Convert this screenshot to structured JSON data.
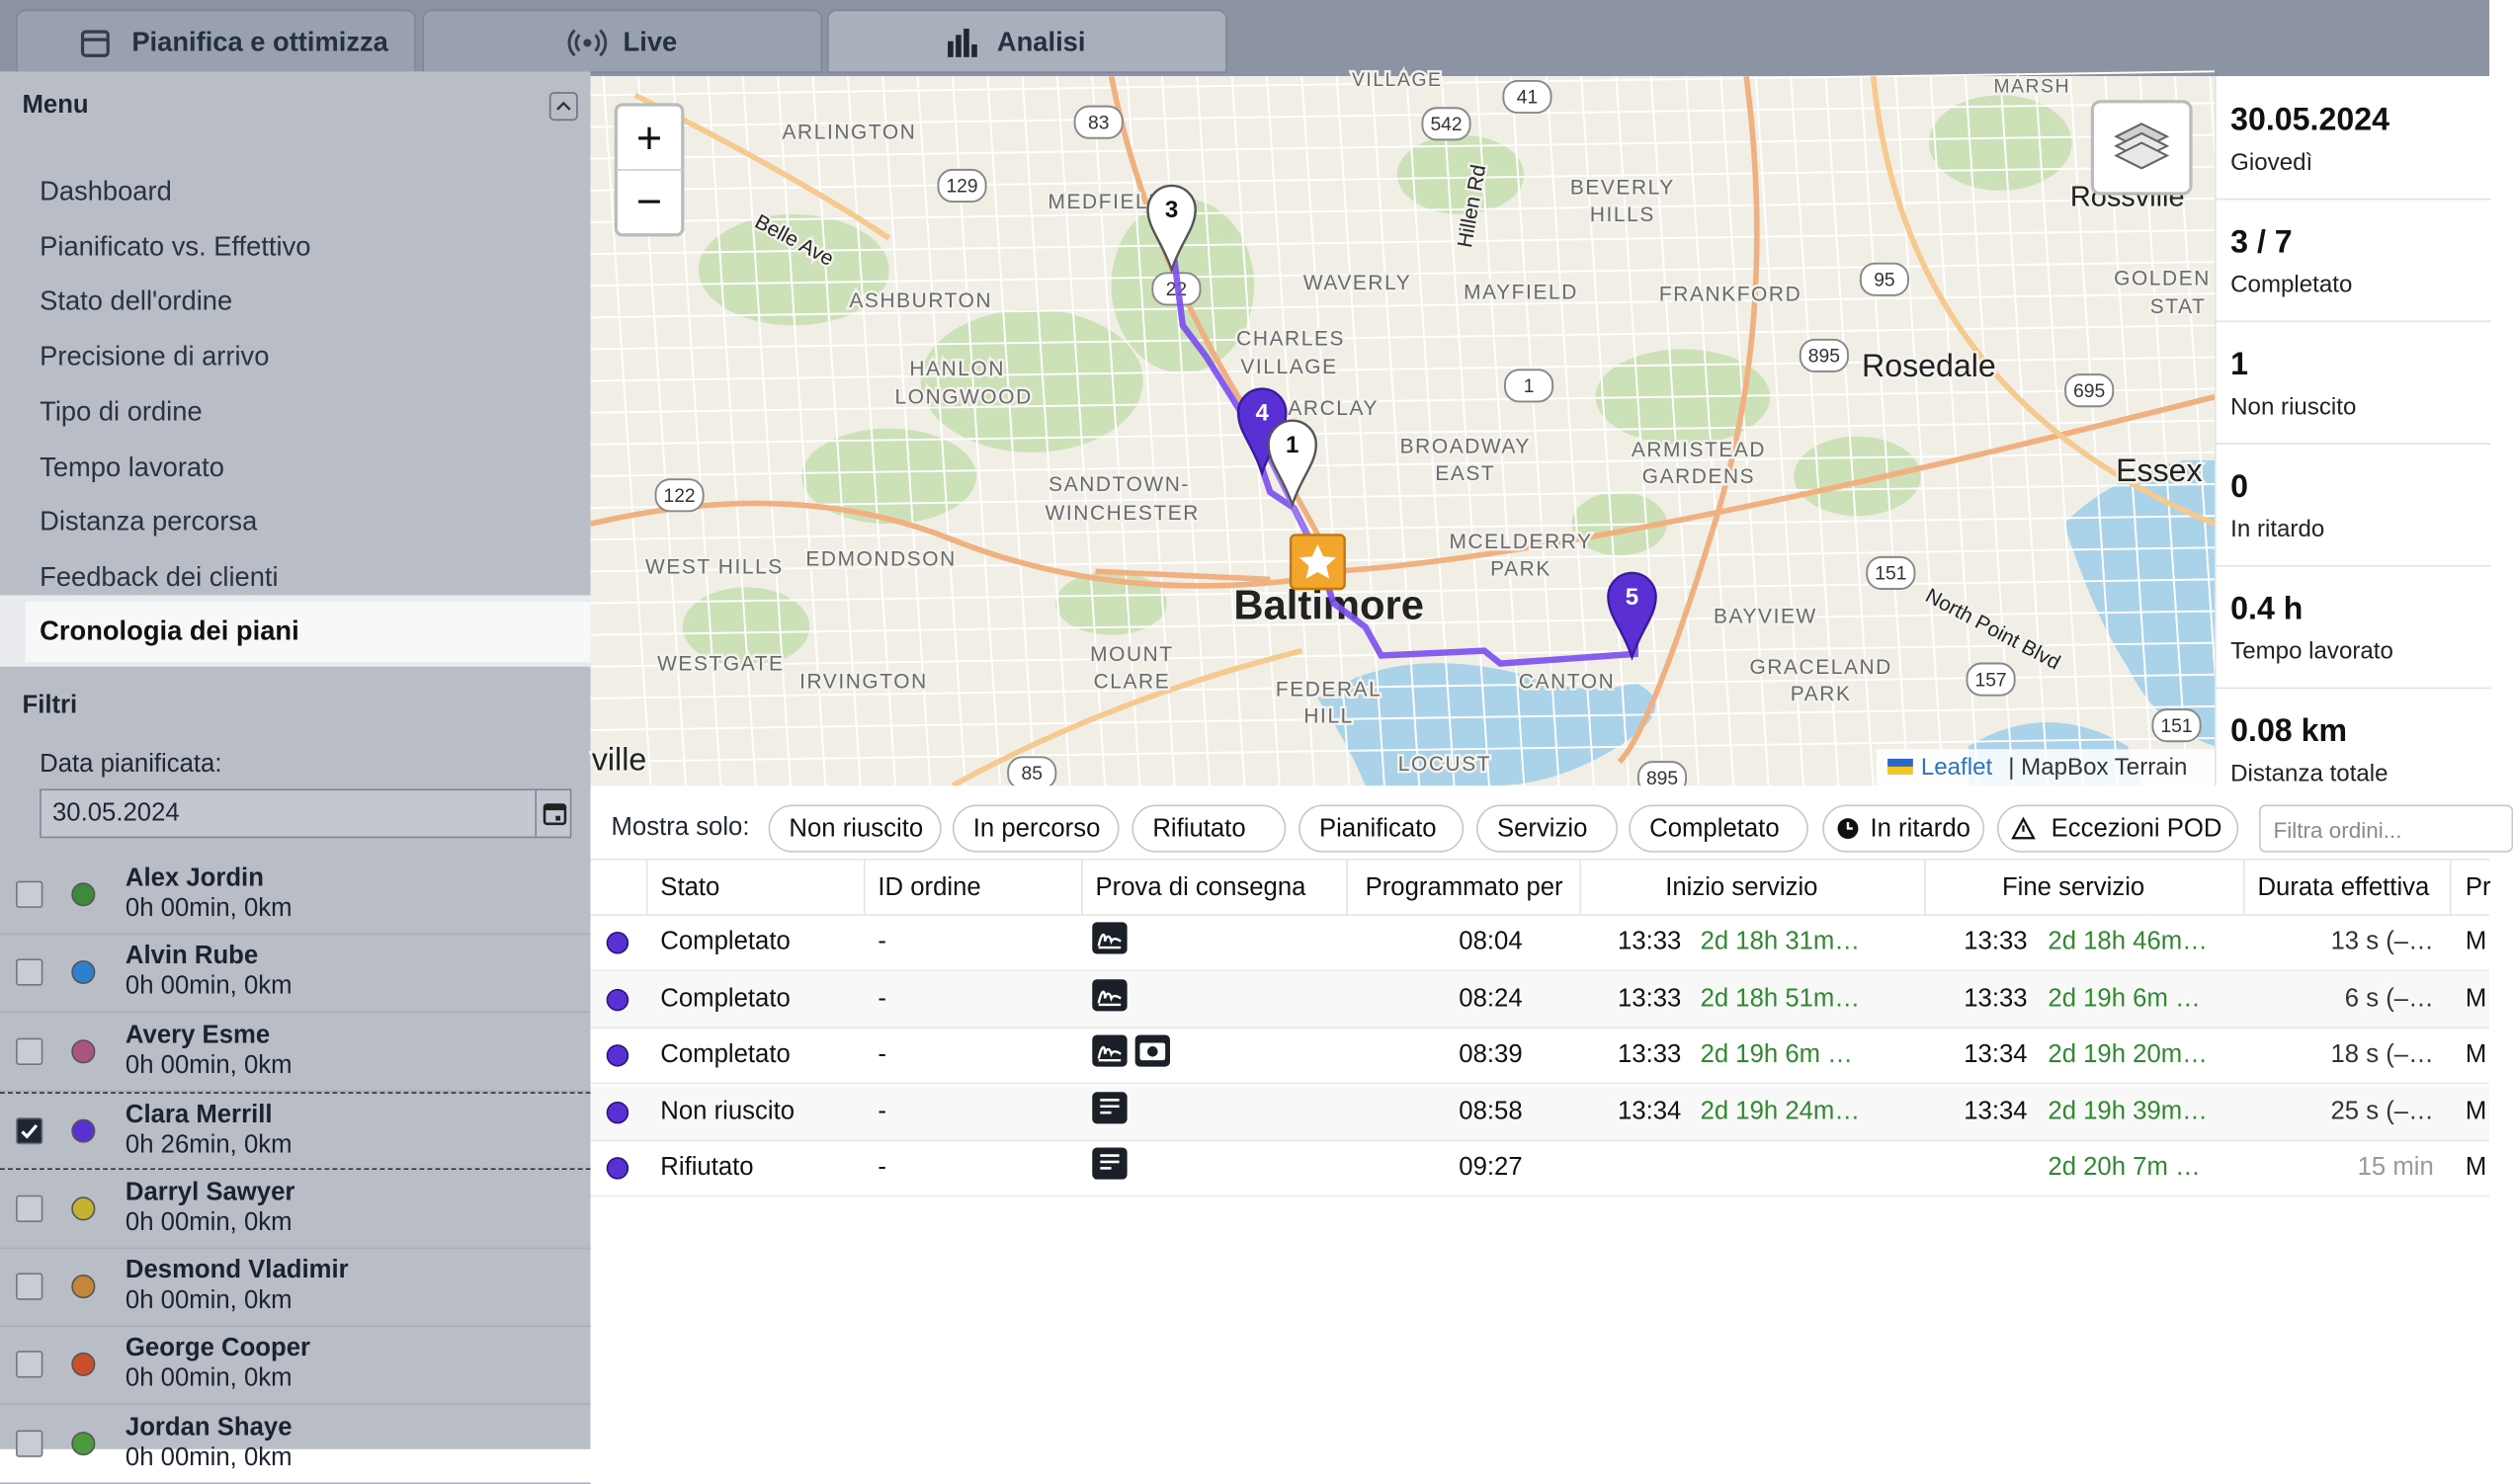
{
  "tabs": [
    {
      "label": "Pianifica e ottimizza",
      "active": false
    },
    {
      "label": "Live",
      "active": false
    },
    {
      "label": "Analisi",
      "active": true
    }
  ],
  "sidebar": {
    "menu_title": "Menu",
    "menu_items": [
      {
        "label": "Dashboard",
        "active": false
      },
      {
        "label": "Pianificato vs. Effettivo",
        "active": false
      },
      {
        "label": "Stato dell'ordine",
        "active": false
      },
      {
        "label": "Precisione di arrivo",
        "active": false
      },
      {
        "label": "Tipo di ordine",
        "active": false
      },
      {
        "label": "Tempo lavorato",
        "active": false
      },
      {
        "label": "Distanza percorsa",
        "active": false
      },
      {
        "label": "Feedback dei clienti",
        "active": false
      },
      {
        "label": "Cronologia dei piani",
        "active": true
      }
    ]
  },
  "filters": {
    "title": "Filtri",
    "date_label": "Data pianificata:",
    "date_value": "30.05.2024"
  },
  "drivers": [
    {
      "name": "Alex Jordin",
      "summary": "0h 00min, 0km",
      "color": "#3f8a3a",
      "checked": false
    },
    {
      "name": "Alvin Rube",
      "summary": "0h 00min, 0km",
      "color": "#2f7fcf",
      "checked": false
    },
    {
      "name": "Avery Esme",
      "summary": "0h 00min, 0km",
      "color": "#a9557f",
      "checked": false
    },
    {
      "name": "Clara Merrill",
      "summary": "0h 26min, 0km",
      "color": "#5a2fd3",
      "checked": true
    },
    {
      "name": "Darryl Sawyer",
      "summary": "0h 00min, 0km",
      "color": "#c6b232",
      "checked": false
    },
    {
      "name": "Desmond Vladimir",
      "summary": "0h 00min, 0km",
      "color": "#c5863a",
      "checked": false
    },
    {
      "name": "George Cooper",
      "summary": "0h 00min, 0km",
      "color": "#cc4f2c",
      "checked": false
    },
    {
      "name": "Jordan Shaye",
      "summary": "0h 00min, 0km",
      "color": "#4a9a40",
      "checked": false
    }
  ],
  "map": {
    "zoom_in": "+",
    "zoom_out": "−",
    "labels": [
      "VILLAGE",
      "MARSH",
      "ARLINGTON",
      "MEDFIELD",
      "ASHBURTON",
      "HANLON",
      "LONGWOOD",
      "CHARLES",
      "VILLAGE",
      "WAVERLY",
      "MAYFIELD",
      "BEVERLY",
      "HILLS",
      "FRANKFORD",
      "Rosedale",
      "BARCLAY",
      "BROADWAY",
      "EAST",
      "ARMISTEAD",
      "GARDENS",
      "Essex",
      "SANDTOWN-",
      "WINCHESTER",
      "WEST HILLS",
      "EDMONDSON",
      "MCELDERRY",
      "PARK",
      "Baltimore",
      "BAYVIEW",
      "North Point Blvd",
      "WESTGATE",
      "IRVINGTON",
      "MOUNT",
      "CLARE",
      "FEDERAL",
      "HILL",
      "CANTON",
      "GRACELAND",
      "PARK",
      "LOCUST",
      "Belle Ave",
      "Hillen Rd",
      "Rossville",
      "ville",
      "GOLDEN",
      "STAT"
    ],
    "shields": [
      "83",
      "542",
      "41",
      "129",
      "95",
      "895",
      "695",
      "1",
      "122",
      "151",
      "157",
      "151",
      "85",
      "22",
      "895"
    ],
    "markers": [
      "3",
      "4",
      "1",
      "5"
    ],
    "attribution_link": "Leaflet",
    "attribution_text": "| MapBox Terrain"
  },
  "summary": [
    {
      "value": "30.05.2024",
      "label": "Giovedì"
    },
    {
      "value": "3 / 7",
      "label": "Completato"
    },
    {
      "value": 1,
      "label": "Non riuscito"
    },
    {
      "value": 0,
      "label": "In ritardo"
    },
    {
      "value": "0.4 h",
      "label": "Tempo lavorato"
    },
    {
      "value": "0.08 km",
      "label": "Distanza totale"
    }
  ],
  "filter_bar": {
    "label": "Mostra solo:",
    "chips": [
      "Non riuscito",
      "In percorso",
      "Rifiutato",
      "Pianificato",
      "Servizio",
      "Completato",
      "In ritardo",
      "Eccezioni POD"
    ],
    "search_placeholder": "Filtra ordini..."
  },
  "table": {
    "columns": [
      "Stato",
      "ID ordine",
      "Prova di consegna",
      "Programmato per",
      "Inizio servizio",
      "Fine servizio",
      "Durata effettiva",
      "Pr"
    ],
    "rows": [
      {
        "color": "#5a2fd3",
        "status": "Completato",
        "id": "-",
        "pod": [
          "signature"
        ],
        "scheduled": "08:04",
        "start_time": "13:33",
        "start_delta": "2d 18h 31m…",
        "end_time": "13:33",
        "end_delta": "2d 18h 46m…",
        "duration": "13 s (–…",
        "extra": "M"
      },
      {
        "color": "#5a2fd3",
        "status": "Completato",
        "id": "-",
        "pod": [
          "signature"
        ],
        "scheduled": "08:24",
        "start_time": "13:33",
        "start_delta": "2d 18h 51m…",
        "end_time": "13:33",
        "end_delta": "2d 19h 6m …",
        "duration": "6 s (–…",
        "extra": "M"
      },
      {
        "color": "#5a2fd3",
        "status": "Completato",
        "id": "-",
        "pod": [
          "signature",
          "photo"
        ],
        "scheduled": "08:39",
        "start_time": "13:33",
        "start_delta": "2d 19h 6m …",
        "end_time": "13:34",
        "end_delta": "2d 19h 20m…",
        "duration": "18 s (–…",
        "extra": "M"
      },
      {
        "color": "#5a2fd3",
        "status": "Non riuscito",
        "id": "-",
        "pod": [
          "note"
        ],
        "scheduled": "08:58",
        "start_time": "13:34",
        "start_delta": "2d 19h 24m…",
        "end_time": "13:34",
        "end_delta": "2d 19h 39m…",
        "duration": "25 s (–…",
        "extra": "M"
      },
      {
        "color": "#5a2fd3",
        "status": "Rifiutato",
        "id": "-",
        "pod": [
          "note"
        ],
        "scheduled": "09:27",
        "start_time": null,
        "start_delta": null,
        "end_time": null,
        "end_delta": "2d 20h 7m …",
        "duration": "15 min",
        "extra": "M"
      }
    ]
  }
}
